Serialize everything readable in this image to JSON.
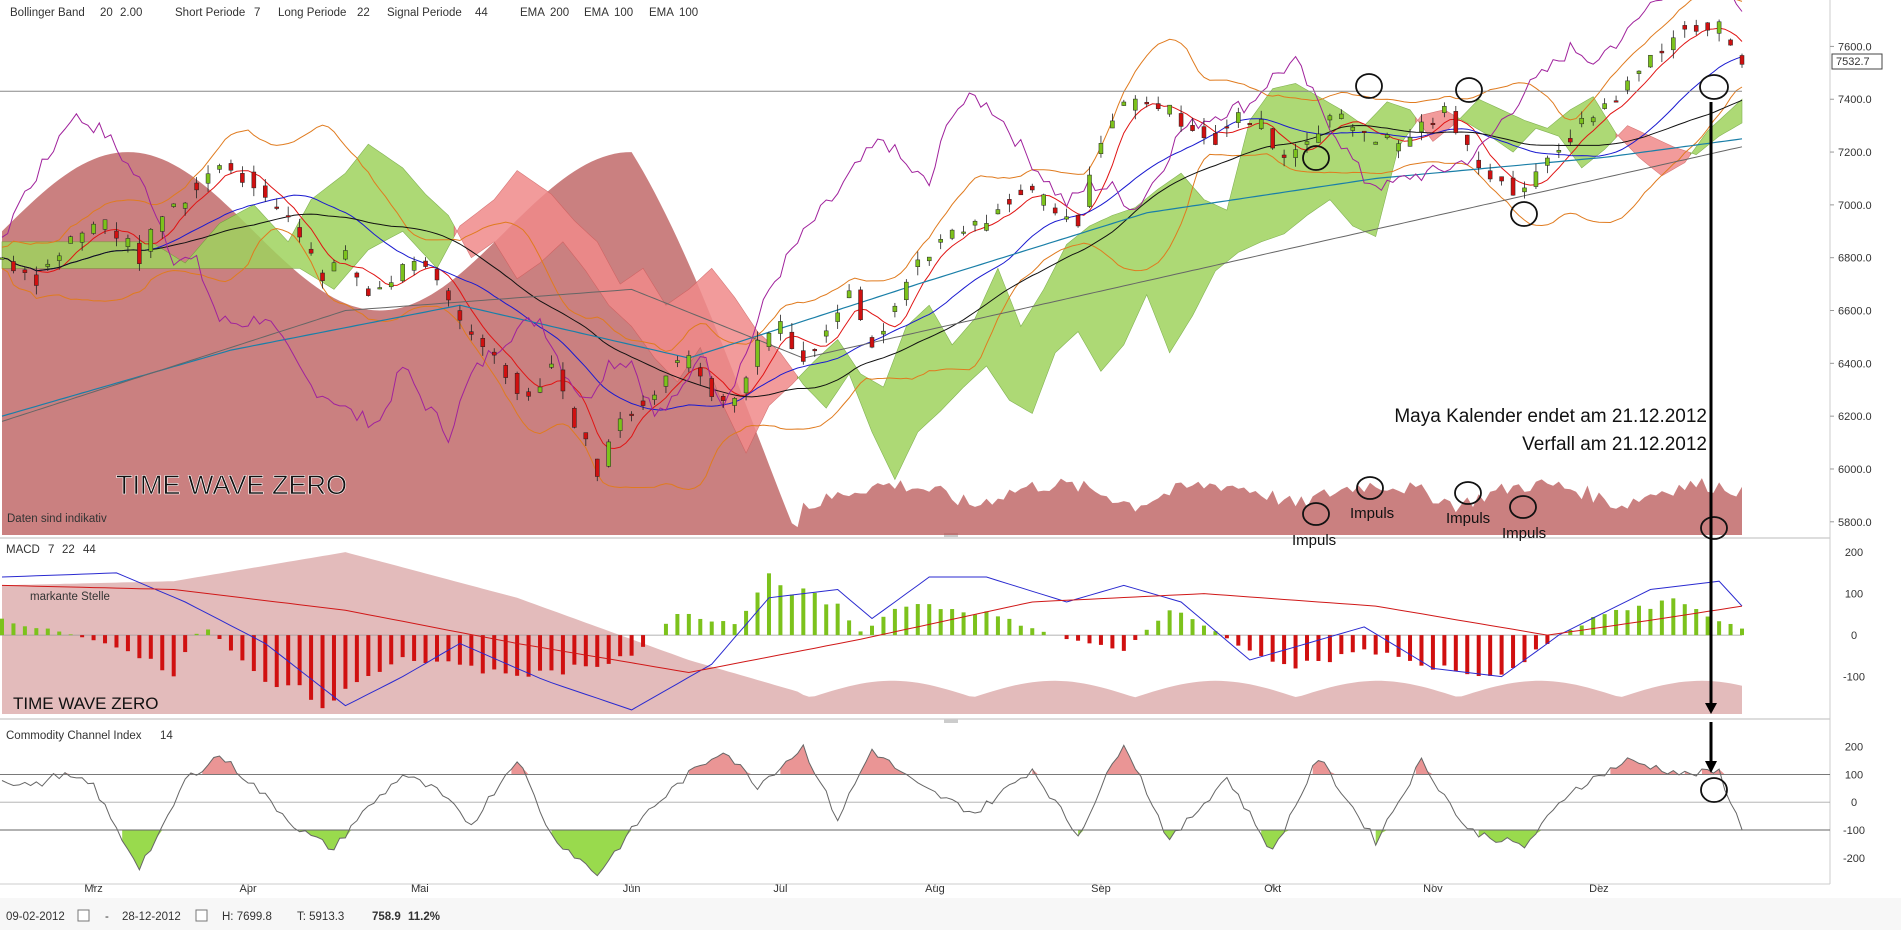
{
  "header": {
    "bollinger_label": "Bollinger Band",
    "bollinger_p1": "20",
    "bollinger_p2": "2.00",
    "short_label": "Short Periode",
    "short_val": "7",
    "long_label": "Long Periode",
    "long_val": "22",
    "signal_label": "Signal Periode",
    "signal_val": "44",
    "ema1_label": "EMA",
    "ema1_val": "200",
    "ema2_label": "EMA",
    "ema2_val": "100",
    "ema3_label": "EMA",
    "ema3_val": "100"
  },
  "colors": {
    "bollinger": "#e07b1f",
    "ema200": "#a0229c",
    "ema100a": "#1a7fa8",
    "ema100b": "#8a6d2a",
    "cloud_red": "#f08a8a",
    "cloud_green": "#9fd35e",
    "volume": "#b85555",
    "macd_line": "#2a2ad0",
    "signal_line": "#d01818",
    "hist_pos": "#7cc21c",
    "hist_neg": "#d01010",
    "cci_pos": "#e88a8a",
    "cci_neg": "#8ed63a"
  },
  "main": {
    "disclaimer": "Daten sind indikativ",
    "watermark": "TIME WAVE ZERO",
    "annotation_line1": "Maya Kalender endet am 21.12.2012",
    "annotation_line2": "Verfall am 21.12.2012",
    "impulse_labels": [
      "Impuls",
      "Impuls",
      "Impuls",
      "Impuls"
    ],
    "last_price": "7532.7"
  },
  "macd_panel": {
    "title": "MACD",
    "p1": "7",
    "p2": "22",
    "p3": "44",
    "note": "markante Stelle",
    "watermark": "TIME WAVE ZERO"
  },
  "cci_panel": {
    "title": "Commodity Channel Index",
    "period": "14"
  },
  "footer": {
    "start_date": "09-02-2012",
    "separator": "-",
    "end_date": "28-12-2012",
    "high": "H: 7699.8",
    "low": "T: 5913.3",
    "change": "758.9",
    "change_pct": "11.2%"
  },
  "chart_data": [
    {
      "type": "candlestick",
      "yticks": [
        5800,
        6000,
        6200,
        6400,
        6600,
        6800,
        7000,
        7200,
        7400,
        7600
      ],
      "ylim": [
        5750,
        7700
      ],
      "months": [
        "Mrz",
        "Apr",
        "Mai",
        "Jun",
        "Jul",
        "Aug",
        "Sep",
        "Okt",
        "Nov",
        "Dez"
      ],
      "close_path": [
        [
          0,
          6800
        ],
        [
          6,
          6720
        ],
        [
          12,
          6870
        ],
        [
          18,
          6940
        ],
        [
          24,
          6800
        ],
        [
          28,
          6960
        ],
        [
          34,
          7060
        ],
        [
          38,
          7170
        ],
        [
          44,
          7080
        ],
        [
          48,
          6980
        ],
        [
          52,
          6900
        ],
        [
          56,
          6740
        ],
        [
          60,
          6800
        ],
        [
          64,
          6660
        ],
        [
          68,
          6720
        ],
        [
          72,
          6800
        ],
        [
          76,
          6690
        ],
        [
          80,
          6560
        ],
        [
          84,
          6480
        ],
        [
          88,
          6360
        ],
        [
          92,
          6270
        ],
        [
          96,
          6400
        ],
        [
          100,
          6180
        ],
        [
          104,
          6000
        ],
        [
          108,
          6180
        ],
        [
          112,
          6260
        ],
        [
          116,
          6350
        ],
        [
          120,
          6430
        ],
        [
          124,
          6300
        ],
        [
          128,
          6250
        ],
        [
          132,
          6480
        ],
        [
          136,
          6560
        ],
        [
          140,
          6410
        ],
        [
          144,
          6510
        ],
        [
          148,
          6700
        ],
        [
          152,
          6480
        ],
        [
          156,
          6620
        ],
        [
          160,
          6790
        ],
        [
          164,
          6860
        ],
        [
          168,
          6900
        ],
        [
          172,
          6930
        ],
        [
          176,
          7000
        ],
        [
          180,
          7060
        ],
        [
          184,
          6960
        ],
        [
          188,
          6920
        ],
        [
          192,
          7260
        ],
        [
          196,
          7380
        ],
        [
          200,
          7400
        ],
        [
          204,
          7350
        ],
        [
          208,
          7300
        ],
        [
          212,
          7240
        ],
        [
          216,
          7330
        ],
        [
          220,
          7300
        ],
        [
          224,
          7180
        ],
        [
          228,
          7250
        ],
        [
          232,
          7340
        ],
        [
          236,
          7300
        ],
        [
          240,
          7260
        ],
        [
          244,
          7230
        ],
        [
          248,
          7300
        ],
        [
          252,
          7350
        ],
        [
          256,
          7210
        ],
        [
          260,
          7120
        ],
        [
          264,
          7050
        ],
        [
          268,
          7100
        ],
        [
          272,
          7220
        ],
        [
          276,
          7300
        ],
        [
          280,
          7380
        ],
        [
          284,
          7450
        ],
        [
          288,
          7560
        ],
        [
          292,
          7640
        ],
        [
          296,
          7660
        ],
        [
          300,
          7670
        ],
        [
          302,
          7620
        ],
        [
          304,
          7532
        ]
      ],
      "ema200": [
        [
          0,
          6200
        ],
        [
          40,
          6450
        ],
        [
          80,
          6620
        ],
        [
          120,
          6420
        ],
        [
          160,
          6700
        ],
        [
          200,
          6970
        ],
        [
          240,
          7100
        ],
        [
          280,
          7180
        ],
        [
          304,
          7250
        ]
      ],
      "hline": 7430,
      "date_range": [
        "09-02-2012",
        "28-12-2012"
      ]
    },
    {
      "type": "macd",
      "yticks": [
        -100,
        0,
        100,
        200
      ],
      "ylim": [
        -190,
        210
      ],
      "histogram_pattern": [
        [
          0,
          40
        ],
        [
          10,
          10
        ],
        [
          20,
          -30
        ],
        [
          30,
          -100
        ],
        [
          35,
          30
        ],
        [
          45,
          -110
        ],
        [
          56,
          -180
        ],
        [
          70,
          -60
        ],
        [
          80,
          -90
        ],
        [
          95,
          -110
        ],
        [
          110,
          -60
        ],
        [
          118,
          60
        ],
        [
          128,
          30
        ],
        [
          134,
          150
        ],
        [
          146,
          80
        ],
        [
          150,
          10
        ],
        [
          158,
          90
        ],
        [
          172,
          60
        ],
        [
          186,
          -10
        ],
        [
          196,
          -40
        ],
        [
          205,
          80
        ],
        [
          216,
          -30
        ],
        [
          226,
          -90
        ],
        [
          238,
          -40
        ],
        [
          248,
          -80
        ],
        [
          262,
          -110
        ],
        [
          272,
          0
        ],
        [
          280,
          60
        ],
        [
          292,
          90
        ],
        [
          304,
          20
        ]
      ],
      "macd_line": [
        [
          0,
          140
        ],
        [
          20,
          150
        ],
        [
          32,
          80
        ],
        [
          46,
          -20
        ],
        [
          60,
          -170
        ],
        [
          70,
          -100
        ],
        [
          80,
          -20
        ],
        [
          95,
          -110
        ],
        [
          110,
          -180
        ],
        [
          124,
          -70
        ],
        [
          134,
          90
        ],
        [
          146,
          110
        ],
        [
          152,
          40
        ],
        [
          162,
          140
        ],
        [
          172,
          140
        ],
        [
          186,
          80
        ],
        [
          196,
          120
        ],
        [
          206,
          80
        ],
        [
          218,
          -60
        ],
        [
          228,
          -20
        ],
        [
          238,
          20
        ],
        [
          250,
          -80
        ],
        [
          262,
          -100
        ],
        [
          272,
          0
        ],
        [
          288,
          110
        ],
        [
          300,
          130
        ],
        [
          304,
          70
        ]
      ],
      "signal_line": [
        [
          0,
          120
        ],
        [
          30,
          110
        ],
        [
          60,
          60
        ],
        [
          90,
          -20
        ],
        [
          120,
          -90
        ],
        [
          150,
          -10
        ],
        [
          180,
          80
        ],
        [
          210,
          100
        ],
        [
          240,
          70
        ],
        [
          270,
          0
        ],
        [
          290,
          40
        ],
        [
          304,
          70
        ]
      ]
    },
    {
      "type": "line",
      "name": "Commodity Channel Index",
      "yticks": [
        -200,
        -100,
        0,
        100,
        200
      ],
      "ylim": [
        -280,
        260
      ],
      "reference_lines": [
        100,
        0,
        -100
      ],
      "values": [
        [
          0,
          80
        ],
        [
          6,
          60
        ],
        [
          10,
          100
        ],
        [
          16,
          60
        ],
        [
          20,
          -100
        ],
        [
          24,
          -230
        ],
        [
          28,
          -100
        ],
        [
          32,
          80
        ],
        [
          38,
          170
        ],
        [
          44,
          60
        ],
        [
          52,
          -100
        ],
        [
          58,
          -170
        ],
        [
          62,
          -60
        ],
        [
          70,
          100
        ],
        [
          76,
          40
        ],
        [
          82,
          -80
        ],
        [
          90,
          160
        ],
        [
          96,
          -120
        ],
        [
          104,
          -260
        ],
        [
          112,
          -50
        ],
        [
          120,
          100
        ],
        [
          126,
          190
        ],
        [
          132,
          60
        ],
        [
          140,
          200
        ],
        [
          146,
          -60
        ],
        [
          152,
          190
        ],
        [
          160,
          60
        ],
        [
          170,
          -40
        ],
        [
          180,
          120
        ],
        [
          188,
          -120
        ],
        [
          196,
          220
        ],
        [
          204,
          -140
        ],
        [
          214,
          90
        ],
        [
          222,
          -180
        ],
        [
          230,
          160
        ],
        [
          240,
          -140
        ],
        [
          248,
          150
        ],
        [
          256,
          -100
        ],
        [
          266,
          -160
        ],
        [
          274,
          40
        ],
        [
          284,
          150
        ],
        [
          294,
          100
        ],
        [
          300,
          110
        ],
        [
          304,
          -100
        ]
      ]
    }
  ]
}
